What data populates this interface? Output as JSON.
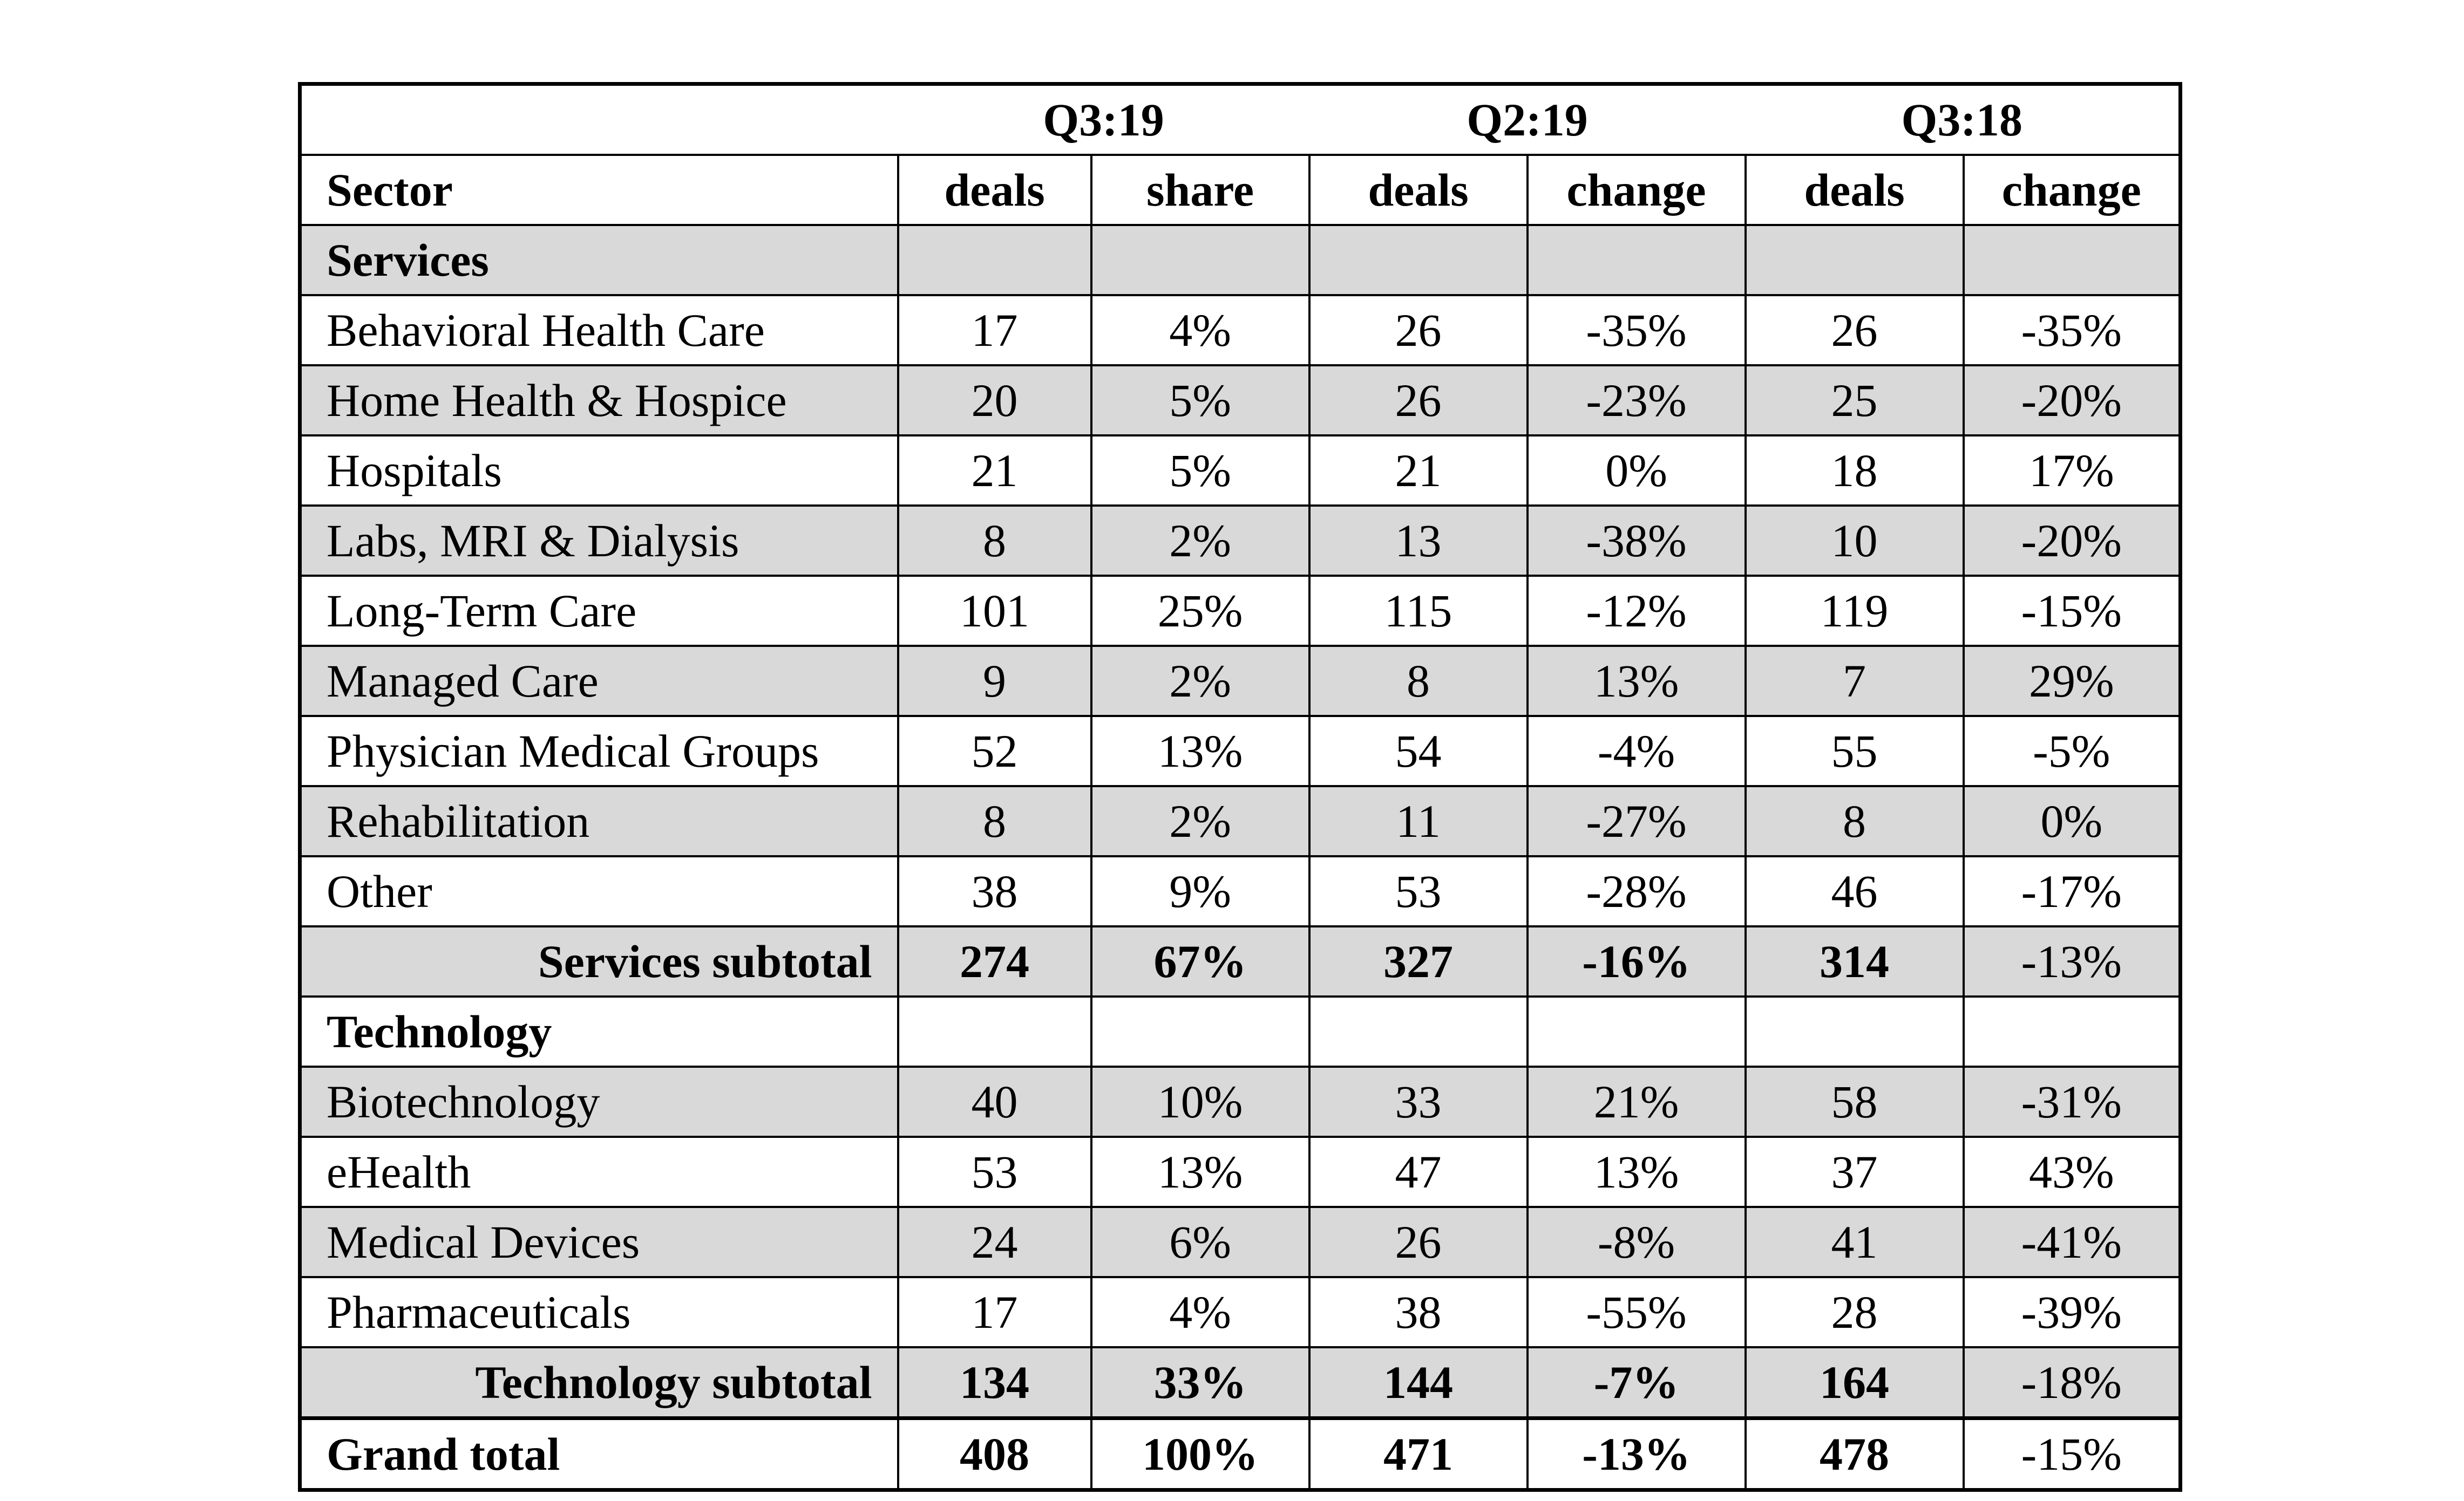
{
  "table": {
    "periods": [
      {
        "label": "Q3:19",
        "columns": [
          "deals",
          "share"
        ]
      },
      {
        "label": "Q2:19",
        "columns": [
          "deals",
          "change"
        ]
      },
      {
        "label": "Q3:18",
        "columns": [
          "deals",
          "change"
        ]
      }
    ],
    "sector_header": "Sector",
    "services_section": {
      "label": "Services",
      "rows": [
        {
          "sector": "Behavioral Health Care",
          "q3_19_deals": "17",
          "q3_19_share": "4%",
          "q2_19_deals": "26",
          "q2_19_change": "-35%",
          "q3_18_deals": "26",
          "q3_18_change": "-35%"
        },
        {
          "sector": "Home Health & Hospice",
          "q3_19_deals": "20",
          "q3_19_share": "5%",
          "q2_19_deals": "26",
          "q2_19_change": "-23%",
          "q3_18_deals": "25",
          "q3_18_change": "-20%"
        },
        {
          "sector": "Hospitals",
          "q3_19_deals": "21",
          "q3_19_share": "5%",
          "q2_19_deals": "21",
          "q2_19_change": "0%",
          "q3_18_deals": "18",
          "q3_18_change": "17%"
        },
        {
          "sector": "Labs, MRI & Dialysis",
          "q3_19_deals": "8",
          "q3_19_share": "2%",
          "q2_19_deals": "13",
          "q2_19_change": "-38%",
          "q3_18_deals": "10",
          "q3_18_change": "-20%"
        },
        {
          "sector": "Long-Term Care",
          "q3_19_deals": "101",
          "q3_19_share": "25%",
          "q2_19_deals": "115",
          "q2_19_change": "-12%",
          "q3_18_deals": "119",
          "q3_18_change": "-15%"
        },
        {
          "sector": "Managed Care",
          "q3_19_deals": "9",
          "q3_19_share": "2%",
          "q2_19_deals": "8",
          "q2_19_change": "13%",
          "q3_18_deals": "7",
          "q3_18_change": "29%"
        },
        {
          "sector": "Physician Medical Groups",
          "q3_19_deals": "52",
          "q3_19_share": "13%",
          "q2_19_deals": "54",
          "q2_19_change": "-4%",
          "q3_18_deals": "55",
          "q3_18_change": "-5%"
        },
        {
          "sector": "Rehabilitation",
          "q3_19_deals": "8",
          "q3_19_share": "2%",
          "q2_19_deals": "11",
          "q2_19_change": "-27%",
          "q3_18_deals": "8",
          "q3_18_change": "0%"
        },
        {
          "sector": "Other",
          "q3_19_deals": "38",
          "q3_19_share": "9%",
          "q2_19_deals": "53",
          "q2_19_change": "-28%",
          "q3_18_deals": "46",
          "q3_18_change": "-17%"
        }
      ],
      "subtotal": {
        "sector": "Services subtotal",
        "q3_19_deals": "274",
        "q3_19_share": "67%",
        "q2_19_deals": "327",
        "q2_19_change": "-16%",
        "q3_18_deals": "314",
        "q3_18_change": "-13%"
      }
    },
    "technology_section": {
      "label": "Technology",
      "rows": [
        {
          "sector": "Biotechnology",
          "q3_19_deals": "40",
          "q3_19_share": "10%",
          "q2_19_deals": "33",
          "q2_19_change": "21%",
          "q3_18_deals": "58",
          "q3_18_change": "-31%"
        },
        {
          "sector": "eHealth",
          "q3_19_deals": "53",
          "q3_19_share": "13%",
          "q2_19_deals": "47",
          "q2_19_change": "13%",
          "q3_18_deals": "37",
          "q3_18_change": "43%"
        },
        {
          "sector": "Medical Devices",
          "q3_19_deals": "24",
          "q3_19_share": "6%",
          "q2_19_deals": "26",
          "q2_19_change": "-8%",
          "q3_18_deals": "41",
          "q3_18_change": "-41%"
        },
        {
          "sector": "Pharmaceuticals",
          "q3_19_deals": "17",
          "q3_19_share": "4%",
          "q2_19_deals": "38",
          "q2_19_change": "-55%",
          "q3_18_deals": "28",
          "q3_18_change": "-39%"
        }
      ],
      "subtotal": {
        "sector": "Technology subtotal",
        "q3_19_deals": "134",
        "q3_19_share": "33%",
        "q2_19_deals": "144",
        "q2_19_change": "-7%",
        "q3_18_deals": "164",
        "q3_18_change": "-18%"
      }
    },
    "grand_total": {
      "sector": "Grand total",
      "q3_19_deals": "408",
      "q3_19_share": "100%",
      "q2_19_deals": "471",
      "q2_19_change": "-13%",
      "q3_18_deals": "478",
      "q3_18_change": "-15%"
    },
    "colors": {
      "shaded_row": "#d9d9d9",
      "border": "#000000",
      "background": "#ffffff"
    }
  }
}
